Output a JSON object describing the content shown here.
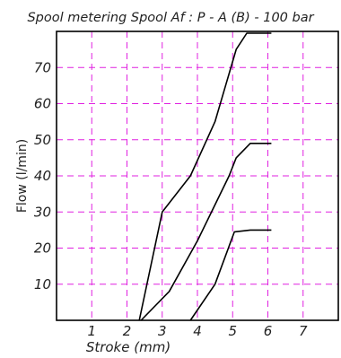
{
  "chart_data": {
    "type": "line",
    "title": "Spool metering Spool Af : P - A (B) - 100 bar",
    "xlabel": "Stroke  (mm)",
    "ylabel": "Flow (l/min)",
    "xlim": [
      0,
      8
    ],
    "ylim": [
      0,
      80
    ],
    "xticks": [
      "1",
      "2",
      "3",
      "4",
      "5",
      "6",
      "7"
    ],
    "yticks": [
      "10",
      "20",
      "30",
      "40",
      "50",
      "60",
      "70"
    ],
    "grid": true,
    "series": [
      {
        "values": [
          [
            2.35,
            0
          ],
          [
            3.0,
            30
          ],
          [
            3.8,
            40
          ],
          [
            4.5,
            55
          ],
          [
            5.1,
            75
          ],
          [
            5.4,
            79.5
          ],
          [
            6.1,
            79.5
          ]
        ]
      },
      {
        "values": [
          [
            2.4,
            0
          ],
          [
            3.2,
            8
          ],
          [
            4.0,
            22
          ],
          [
            4.9,
            40
          ],
          [
            5.1,
            45
          ],
          [
            5.5,
            49
          ],
          [
            6.1,
            49
          ]
        ]
      },
      {
        "values": [
          [
            3.8,
            0
          ],
          [
            4.5,
            10
          ],
          [
            5.05,
            24.5
          ],
          [
            5.5,
            25
          ],
          [
            6.1,
            25
          ]
        ]
      }
    ]
  }
}
